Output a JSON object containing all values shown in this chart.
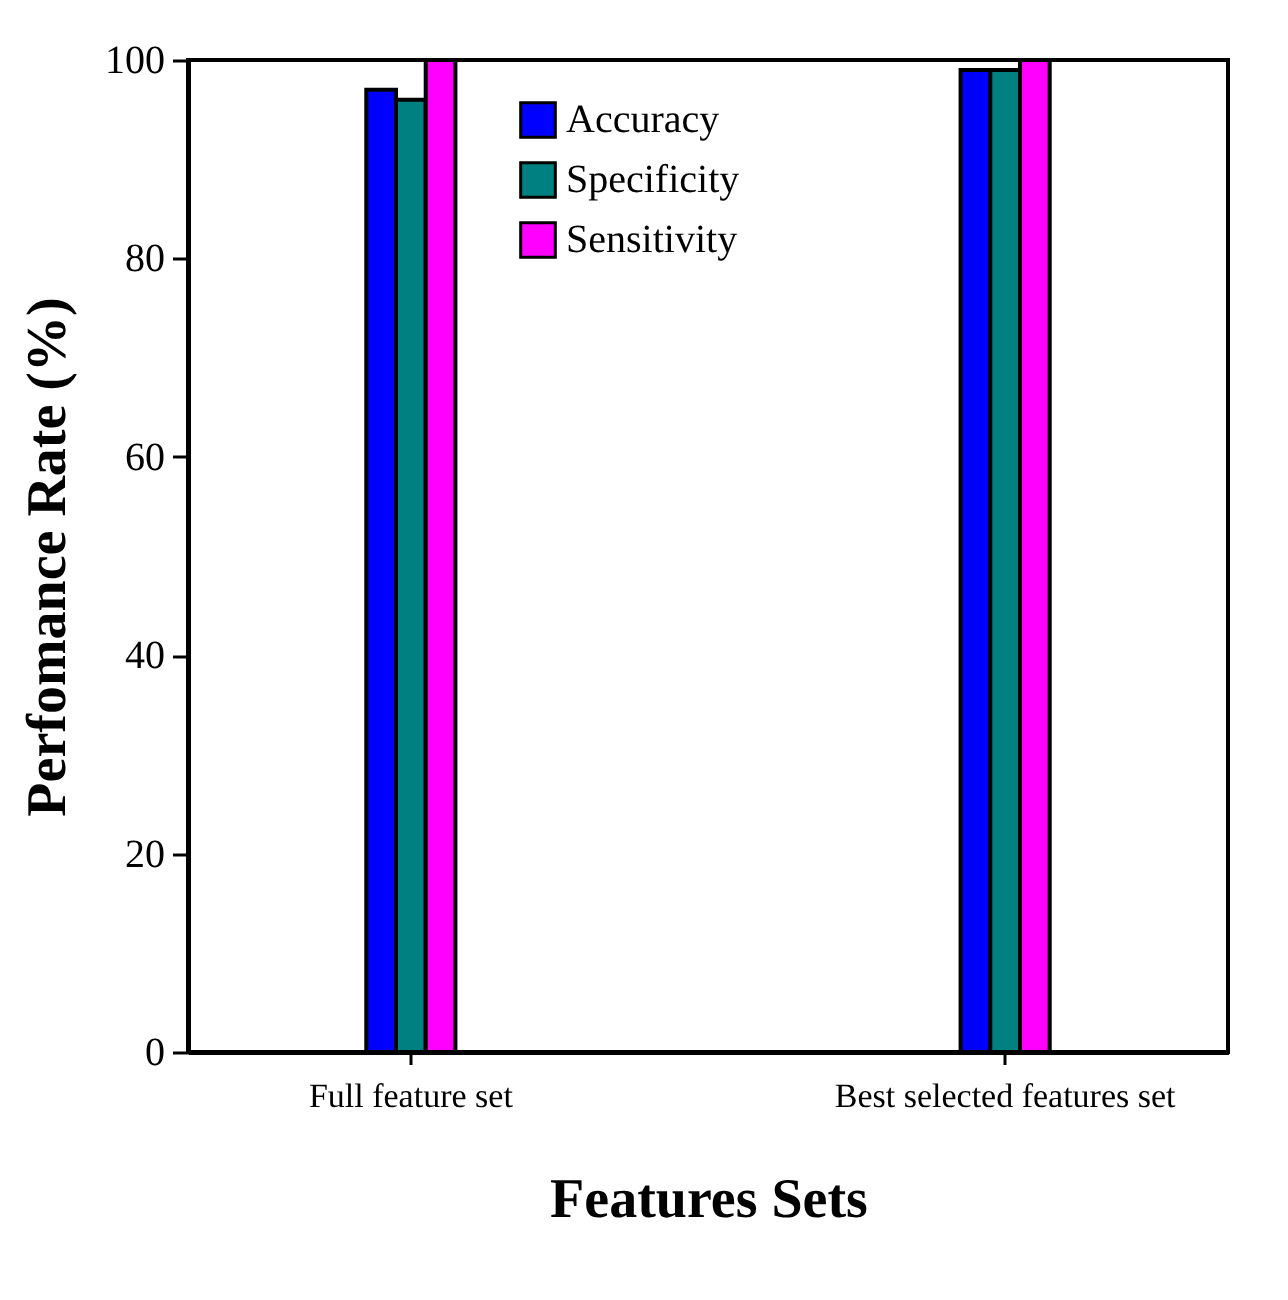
{
  "chart_data": {
    "type": "bar",
    "xlabel": "Features Sets",
    "ylabel": "Perfomance Rate (%)",
    "categories": [
      "Full feature set",
      "Best selected features set"
    ],
    "series": [
      {
        "name": "Accuracy",
        "color": "#0000ff",
        "values": [
          97,
          99
        ]
      },
      {
        "name": "Specificity",
        "color": "#008080",
        "values": [
          96,
          99
        ]
      },
      {
        "name": "Sensitivity",
        "color": "#ff00ff",
        "values": [
          100,
          100
        ]
      }
    ],
    "ylim": [
      0,
      100
    ],
    "yticks": [
      0,
      20,
      40,
      60,
      80,
      100
    ],
    "grid": false,
    "legend": "top"
  }
}
